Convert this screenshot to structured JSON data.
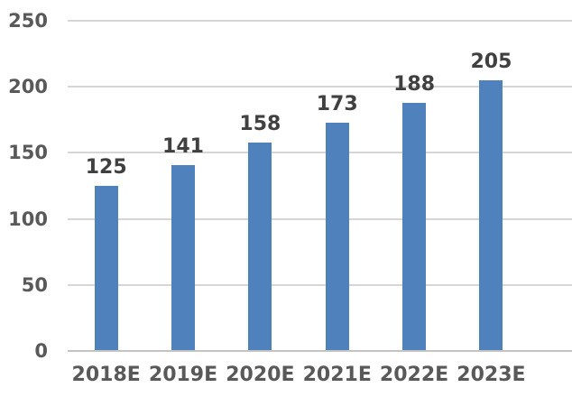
{
  "chart_data": {
    "type": "bar",
    "title": "",
    "xlabel": "",
    "ylabel": "",
    "categories": [
      "2018E",
      "2019E",
      "2020E",
      "2021E",
      "2022E",
      "2023E"
    ],
    "values": [
      125,
      141,
      158,
      173,
      188,
      205
    ],
    "data_labels": [
      "125",
      "141",
      "158",
      "173",
      "188",
      "205"
    ],
    "ylim": [
      0,
      250
    ],
    "yticks": [
      0,
      50,
      100,
      150,
      200,
      250
    ],
    "ytick_labels": [
      "0",
      "50",
      "100",
      "150",
      "200",
      "250"
    ],
    "grid": "horizontal",
    "legend": "none",
    "colors": {
      "bar": "#4F81BD",
      "data_label": "#404040",
      "axis_label": "#595959",
      "gridline": "#D6D6D6",
      "axis_line": "#C3C3C3",
      "background": "#FFFFFF"
    }
  }
}
